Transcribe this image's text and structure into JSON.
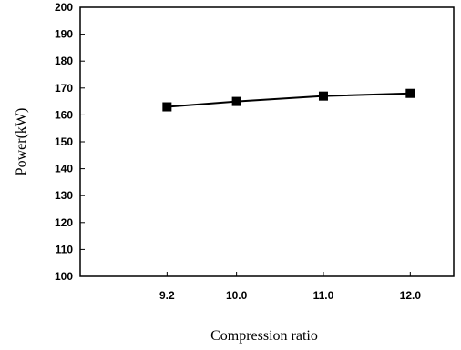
{
  "chart_data": {
    "type": "line",
    "title": "",
    "xlabel": "Compression ratio",
    "ylabel": "Power(kW)",
    "x": [
      "9.2",
      "10.0",
      "11.0",
      "12.0"
    ],
    "series": [
      {
        "values": [
          163,
          165,
          167,
          168
        ]
      }
    ],
    "yticks": [
      "100",
      "110",
      "120",
      "130",
      "140",
      "150",
      "160",
      "170",
      "180",
      "190",
      "200"
    ],
    "ylim": [
      100,
      200
    ],
    "grid": false,
    "legend": "none",
    "colors": {
      "line": "#000000",
      "marker": "#000000",
      "frame": "#000000"
    },
    "marker": "square"
  }
}
